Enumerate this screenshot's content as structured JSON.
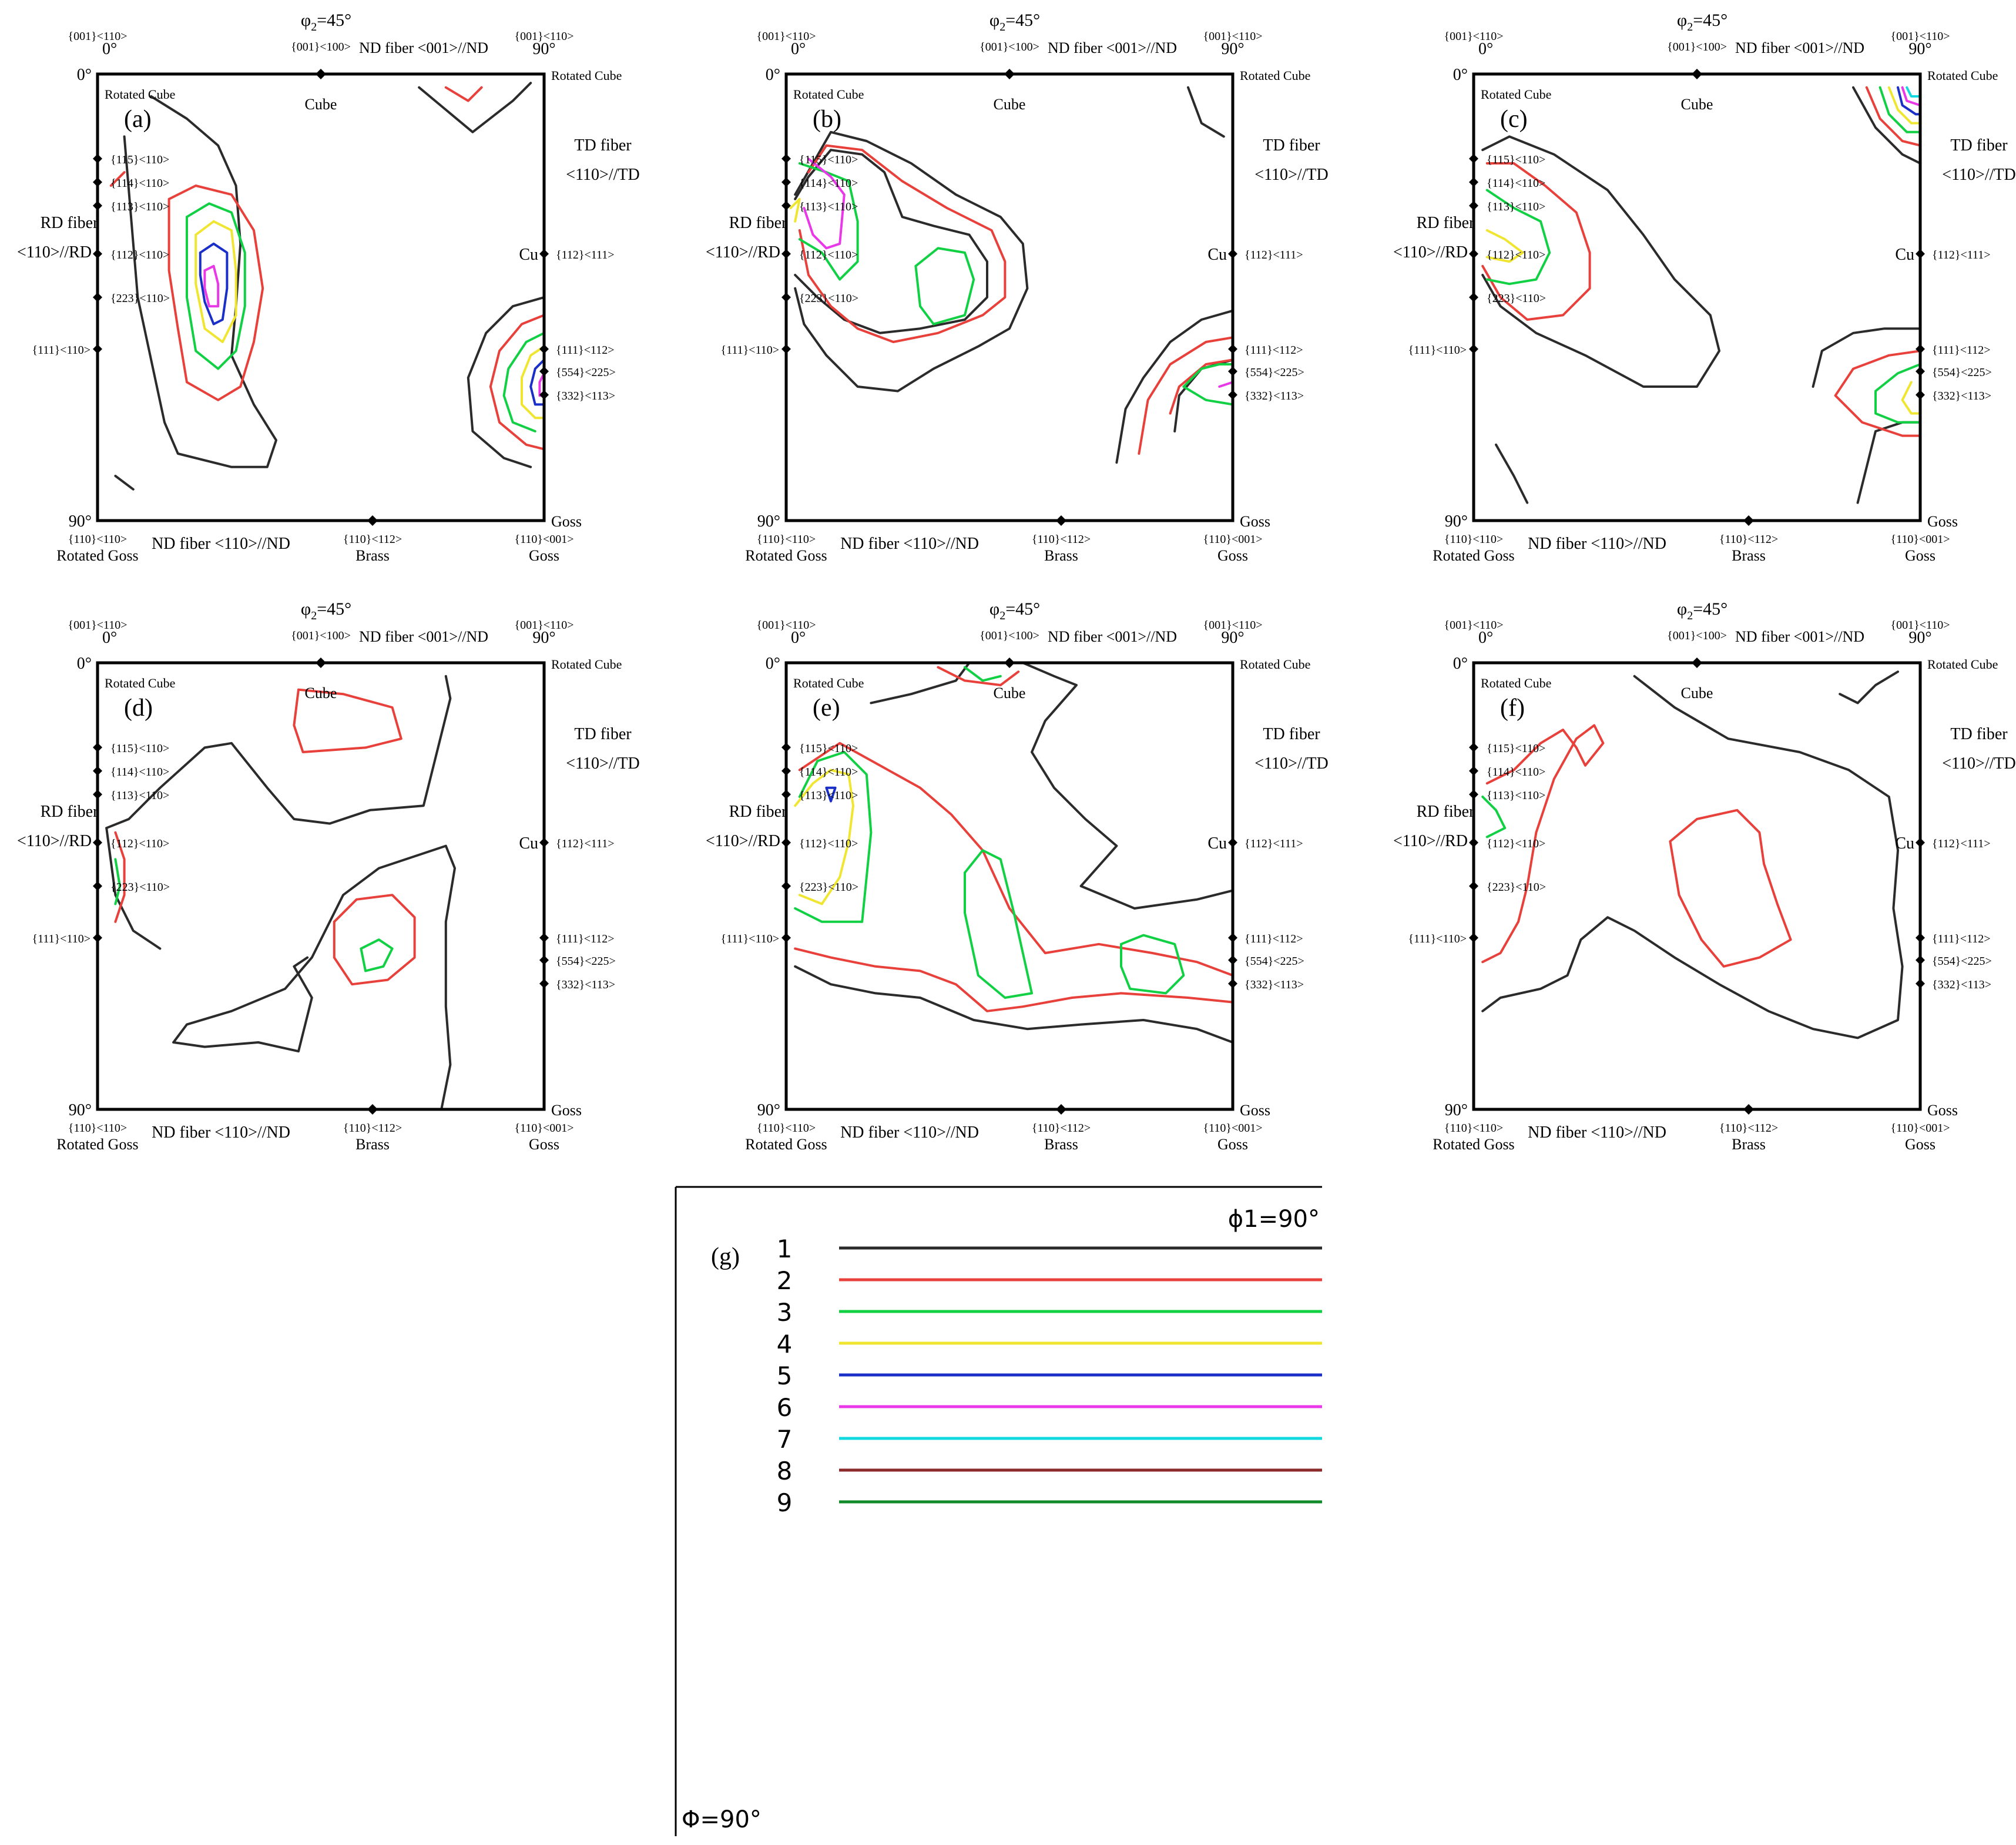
{
  "chart_data": {
    "type": "contour",
    "description_title": "phi2 = 45 degree ODF sections",
    "phi2_label": "φ",
    "phi2_sub": "2",
    "phi2_value": "=45°",
    "top_left_angle": "0°",
    "top_right_angle": "90°",
    "left_top_angle": "0°",
    "left_bottom_angle": "90°",
    "top_axis": {
      "left_component": "{001}<110>",
      "mid_component": "{001}<100>",
      "right_component": "{001}<110>",
      "fiber_label": "ND fiber <001>//ND",
      "cube_label": "Cube",
      "rotated_cube_left": "Rotated Cube",
      "rotated_cube_right": "Rotated Cube"
    },
    "left_axis": {
      "fiber_label_1": "RD fiber",
      "fiber_label_2": "<110>//RD",
      "ticks": [
        "{115}<110>",
        "{114}<110>",
        "{113}<110>",
        "{112}<110>",
        "{223}<110>",
        "{111}<110>"
      ]
    },
    "right_axis": {
      "fiber_label_1": "TD fiber",
      "fiber_label_2": "<110>//TD",
      "cu_label": "Cu",
      "ticks": [
        "{112}<111>",
        "{111}<112>",
        "{554}<225>",
        "{332}<113>"
      ],
      "goss_label": "Goss"
    },
    "bottom_axis": {
      "left_component": "{110}<110>",
      "left_name": "Rotated Goss",
      "fiber_label": "ND fiber <110>//ND",
      "mid_component": "{110}<112>",
      "mid_name": "Brass",
      "right_component": "{110}<001>",
      "right_name": "Goss"
    },
    "panels": [
      {
        "label": "(a)",
        "max_level": 6
      },
      {
        "label": "(b)",
        "max_level": 6
      },
      {
        "label": "(c)",
        "max_level": 7
      },
      {
        "label": "(d)",
        "max_level": 3
      },
      {
        "label": "(e)",
        "max_level": 5
      },
      {
        "label": "(f)",
        "max_level": 3
      }
    ],
    "legend": {
      "label": "(g)",
      "phi1": "ϕ1=90°",
      "Phi": "Φ=90°",
      "levels": [
        {
          "value": "1",
          "color": "#2b2b2b"
        },
        {
          "value": "2",
          "color": "#e8403a"
        },
        {
          "value": "3",
          "color": "#11d044"
        },
        {
          "value": "4",
          "color": "#f0e632"
        },
        {
          "value": "5",
          "color": "#1a2fc8"
        },
        {
          "value": "6",
          "color": "#e838e8"
        },
        {
          "value": "7",
          "color": "#12d8e0"
        },
        {
          "value": "8",
          "color": "#8a2a2a"
        },
        {
          "value": "9",
          "color": "#118a2a"
        }
      ]
    }
  }
}
